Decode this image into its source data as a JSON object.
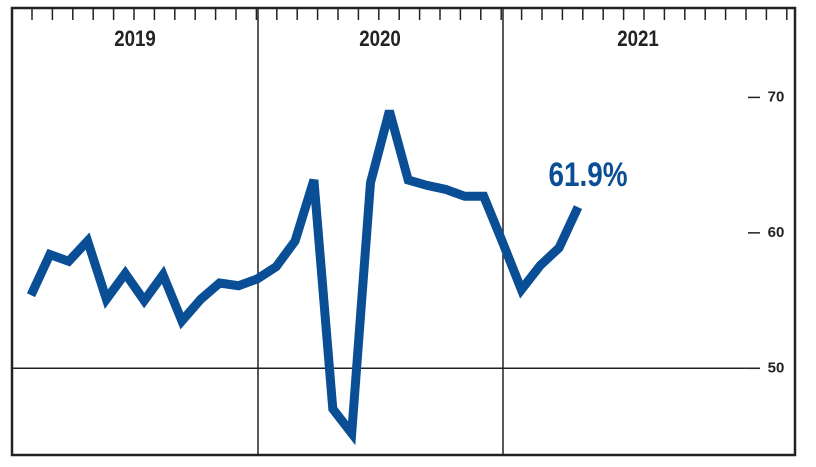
{
  "chart_data": {
    "type": "line",
    "year_labels": [
      "2019",
      "2020",
      "2021"
    ],
    "categories": [
      null,
      null,
      null,
      null,
      null,
      null,
      null,
      null,
      null,
      null,
      null,
      null,
      null,
      null,
      null,
      null,
      null,
      null,
      null,
      null,
      null,
      null,
      null,
      null,
      null,
      null,
      null,
      null,
      null,
      null
    ],
    "series": [
      {
        "color": "#0a4f96",
        "values": [
          55.4,
          58.4,
          57.9,
          59.4,
          55.1,
          57.0,
          55.0,
          56.9,
          53.5,
          55.1,
          56.3,
          56.1,
          56.6,
          57.5,
          59.4,
          63.9,
          47.0,
          45.2,
          63.7,
          69.0,
          63.9,
          63.5,
          63.2,
          62.7,
          62.7,
          59.3,
          55.8,
          57.6,
          58.9,
          61.9
        ],
        "value_labels": [
          null,
          null,
          null,
          null,
          null,
          null,
          null,
          null,
          null,
          null,
          null,
          null,
          null,
          null,
          null,
          null,
          null,
          null,
          null,
          null,
          null,
          null,
          null,
          null,
          null,
          null,
          null,
          null,
          null,
          "61.9%"
        ]
      }
    ],
    "ylim": [
      43.6,
      76.6
    ],
    "yticks": [
      50,
      60,
      70
    ],
    "hline": 50
  }
}
